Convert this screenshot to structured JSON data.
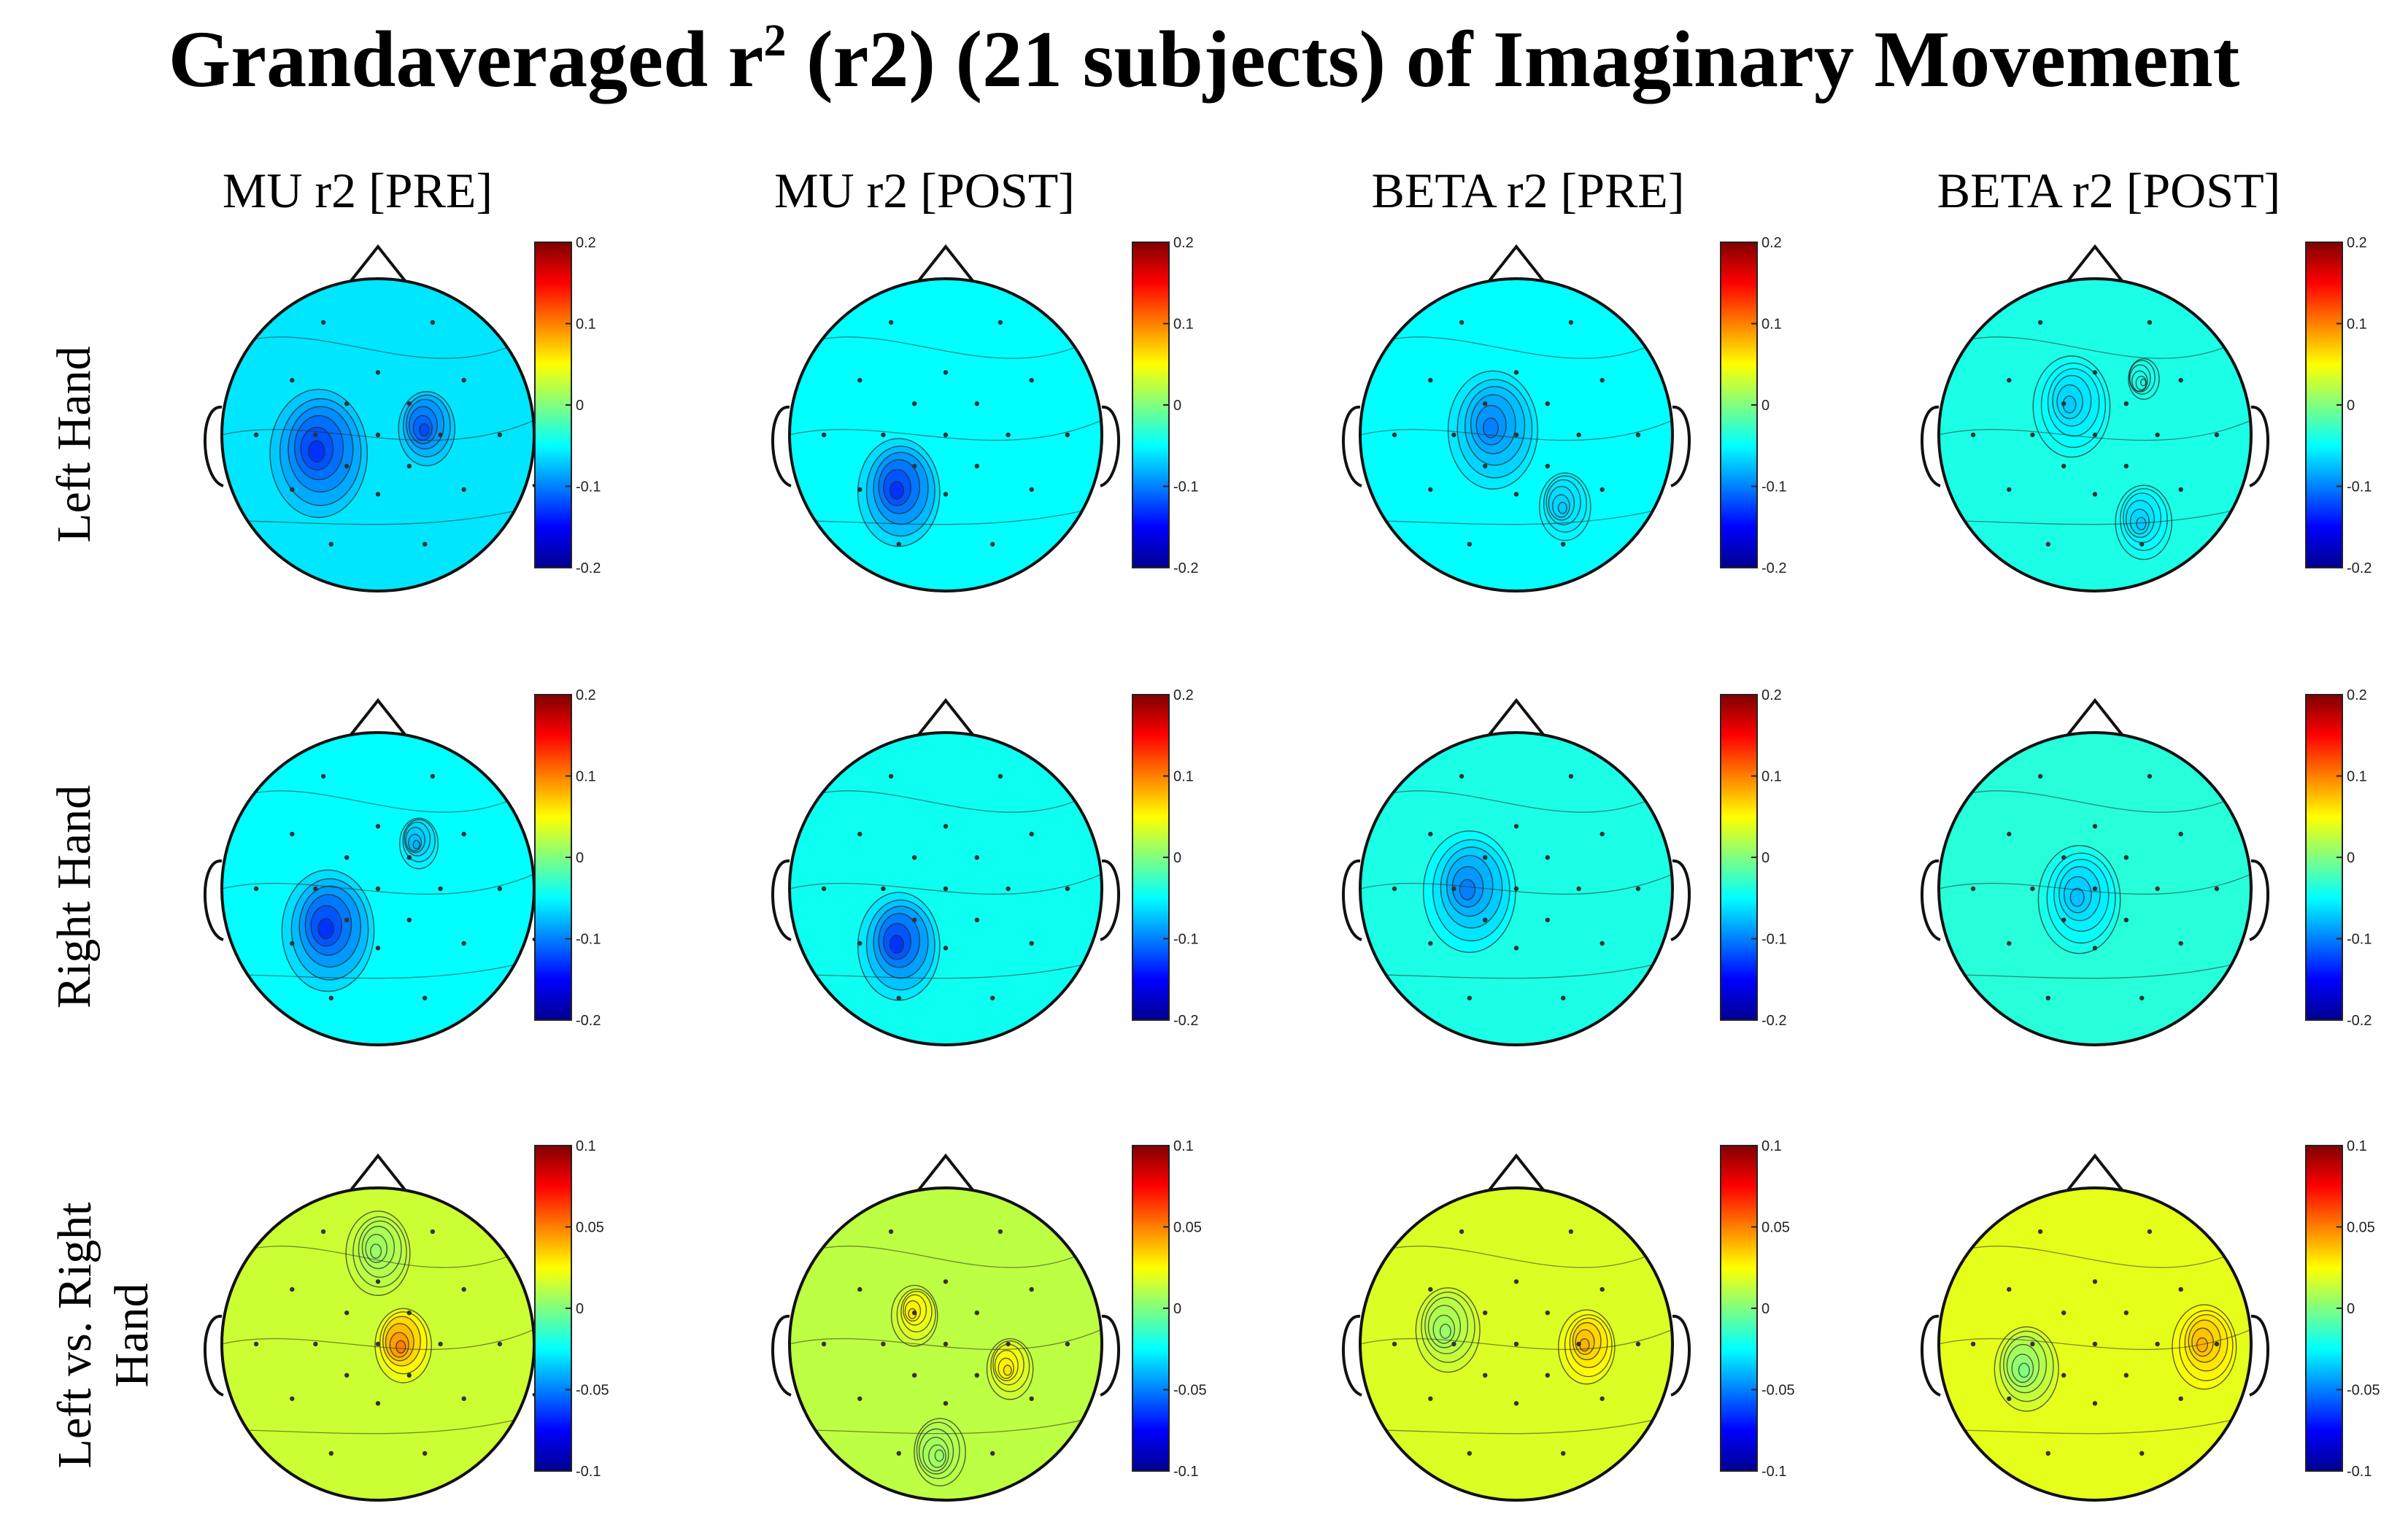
{
  "title": {
    "prefix": "Grandaveraged r",
    "superscript": "2",
    "suffix": " (r2) (21 subjects) of Imaginary Movement"
  },
  "columns": [
    "MU r2 [PRE]",
    "MU r2 [POST]",
    "BETA r2 [PRE]",
    "BETA r2 [POST]"
  ],
  "rows": [
    {
      "label_lines": [
        "Left Hand"
      ],
      "colorbar_ticks": [
        "0.2",
        "0.1",
        "0",
        "-0.1",
        "-0.2"
      ]
    },
    {
      "label_lines": [
        "Right Hand"
      ],
      "colorbar_ticks": [
        "0.2",
        "0.1",
        "0",
        "-0.1",
        "-0.2"
      ]
    },
    {
      "label_lines": [
        "Left vs. Right",
        "Hand"
      ],
      "colorbar_ticks": [
        "0.1",
        "0.05",
        "0",
        "-0.05",
        "-0.1"
      ]
    }
  ],
  "colors": {
    "jet": [
      "#00008f",
      "#0000ff",
      "#0080ff",
      "#00ffff",
      "#80ff80",
      "#ffff00",
      "#ff8000",
      "#ff0000",
      "#800000"
    ],
    "head_outline": "#111111",
    "contour": "#2a2a2a"
  },
  "chart_data": {
    "type": "heatmap",
    "description_units": "r2 value on colour scale",
    "panels": [
      {
        "row": 0,
        "col": 0,
        "scale": [
          -0.2,
          0.2
        ],
        "background": -0.06,
        "blobs": [
          {
            "cx": -0.38,
            "cy": 0.1,
            "v": -0.13,
            "r": 0.38
          },
          {
            "cx": 0.3,
            "cy": -0.05,
            "v": -0.12,
            "r": 0.22
          }
        ]
      },
      {
        "row": 0,
        "col": 1,
        "scale": [
          -0.2,
          0.2
        ],
        "background": -0.05,
        "blobs": [
          {
            "cx": -0.3,
            "cy": 0.35,
            "v": -0.13,
            "r": 0.32
          }
        ]
      },
      {
        "row": 0,
        "col": 2,
        "scale": [
          -0.2,
          0.2
        ],
        "background": -0.05,
        "blobs": [
          {
            "cx": -0.15,
            "cy": -0.05,
            "v": -0.1,
            "r": 0.35
          },
          {
            "cx": 0.3,
            "cy": 0.45,
            "v": -0.07,
            "r": 0.2
          }
        ]
      },
      {
        "row": 0,
        "col": 3,
        "scale": [
          -0.2,
          0.2
        ],
        "background": -0.04,
        "blobs": [
          {
            "cx": -0.15,
            "cy": -0.2,
            "v": -0.07,
            "r": 0.3
          },
          {
            "cx": 0.3,
            "cy": 0.55,
            "v": -0.07,
            "r": 0.22
          },
          {
            "cx": 0.3,
            "cy": -0.35,
            "v": -0.04,
            "r": 0.12
          }
        ]
      },
      {
        "row": 1,
        "col": 0,
        "scale": [
          -0.2,
          0.2
        ],
        "background": -0.05,
        "blobs": [
          {
            "cx": -0.32,
            "cy": 0.25,
            "v": -0.13,
            "r": 0.36
          },
          {
            "cx": 0.25,
            "cy": -0.3,
            "v": -0.08,
            "r": 0.15
          }
        ]
      },
      {
        "row": 1,
        "col": 1,
        "scale": [
          -0.2,
          0.2
        ],
        "background": -0.045,
        "blobs": [
          {
            "cx": -0.3,
            "cy": 0.35,
            "v": -0.13,
            "r": 0.32
          }
        ]
      },
      {
        "row": 1,
        "col": 2,
        "scale": [
          -0.2,
          0.2
        ],
        "background": -0.04,
        "blobs": [
          {
            "cx": -0.3,
            "cy": 0.0,
            "v": -0.1,
            "r": 0.36
          }
        ]
      },
      {
        "row": 1,
        "col": 3,
        "scale": [
          -0.2,
          0.2
        ],
        "background": -0.035,
        "blobs": [
          {
            "cx": -0.1,
            "cy": 0.05,
            "v": -0.075,
            "r": 0.32
          }
        ]
      },
      {
        "row": 2,
        "col": 0,
        "scale": [
          -0.1,
          0.1
        ],
        "background": 0.015,
        "blobs": [
          {
            "cx": 0.0,
            "cy": -0.6,
            "v": 0.005,
            "r": 0.25
          },
          {
            "cx": 0.15,
            "cy": 0.0,
            "v": 0.05,
            "r": 0.22
          }
        ]
      },
      {
        "row": 2,
        "col": 1,
        "scale": [
          -0.1,
          0.1
        ],
        "background": 0.012,
        "blobs": [
          {
            "cx": -0.2,
            "cy": -0.2,
            "v": 0.03,
            "r": 0.18
          },
          {
            "cx": 0.4,
            "cy": 0.15,
            "v": 0.03,
            "r": 0.18
          },
          {
            "cx": -0.05,
            "cy": 0.7,
            "v": 0.005,
            "r": 0.2
          }
        ]
      },
      {
        "row": 2,
        "col": 2,
        "scale": [
          -0.1,
          0.1
        ],
        "background": 0.018,
        "blobs": [
          {
            "cx": 0.45,
            "cy": 0.0,
            "v": 0.04,
            "r": 0.22
          },
          {
            "cx": -0.45,
            "cy": -0.1,
            "v": 0.005,
            "r": 0.25
          }
        ]
      },
      {
        "row": 2,
        "col": 3,
        "scale": [
          -0.1,
          0.1
        ],
        "background": 0.02,
        "blobs": [
          {
            "cx": 0.7,
            "cy": 0.0,
            "v": 0.04,
            "r": 0.25
          },
          {
            "cx": -0.45,
            "cy": 0.15,
            "v": 0.0,
            "r": 0.25
          }
        ]
      }
    ]
  }
}
